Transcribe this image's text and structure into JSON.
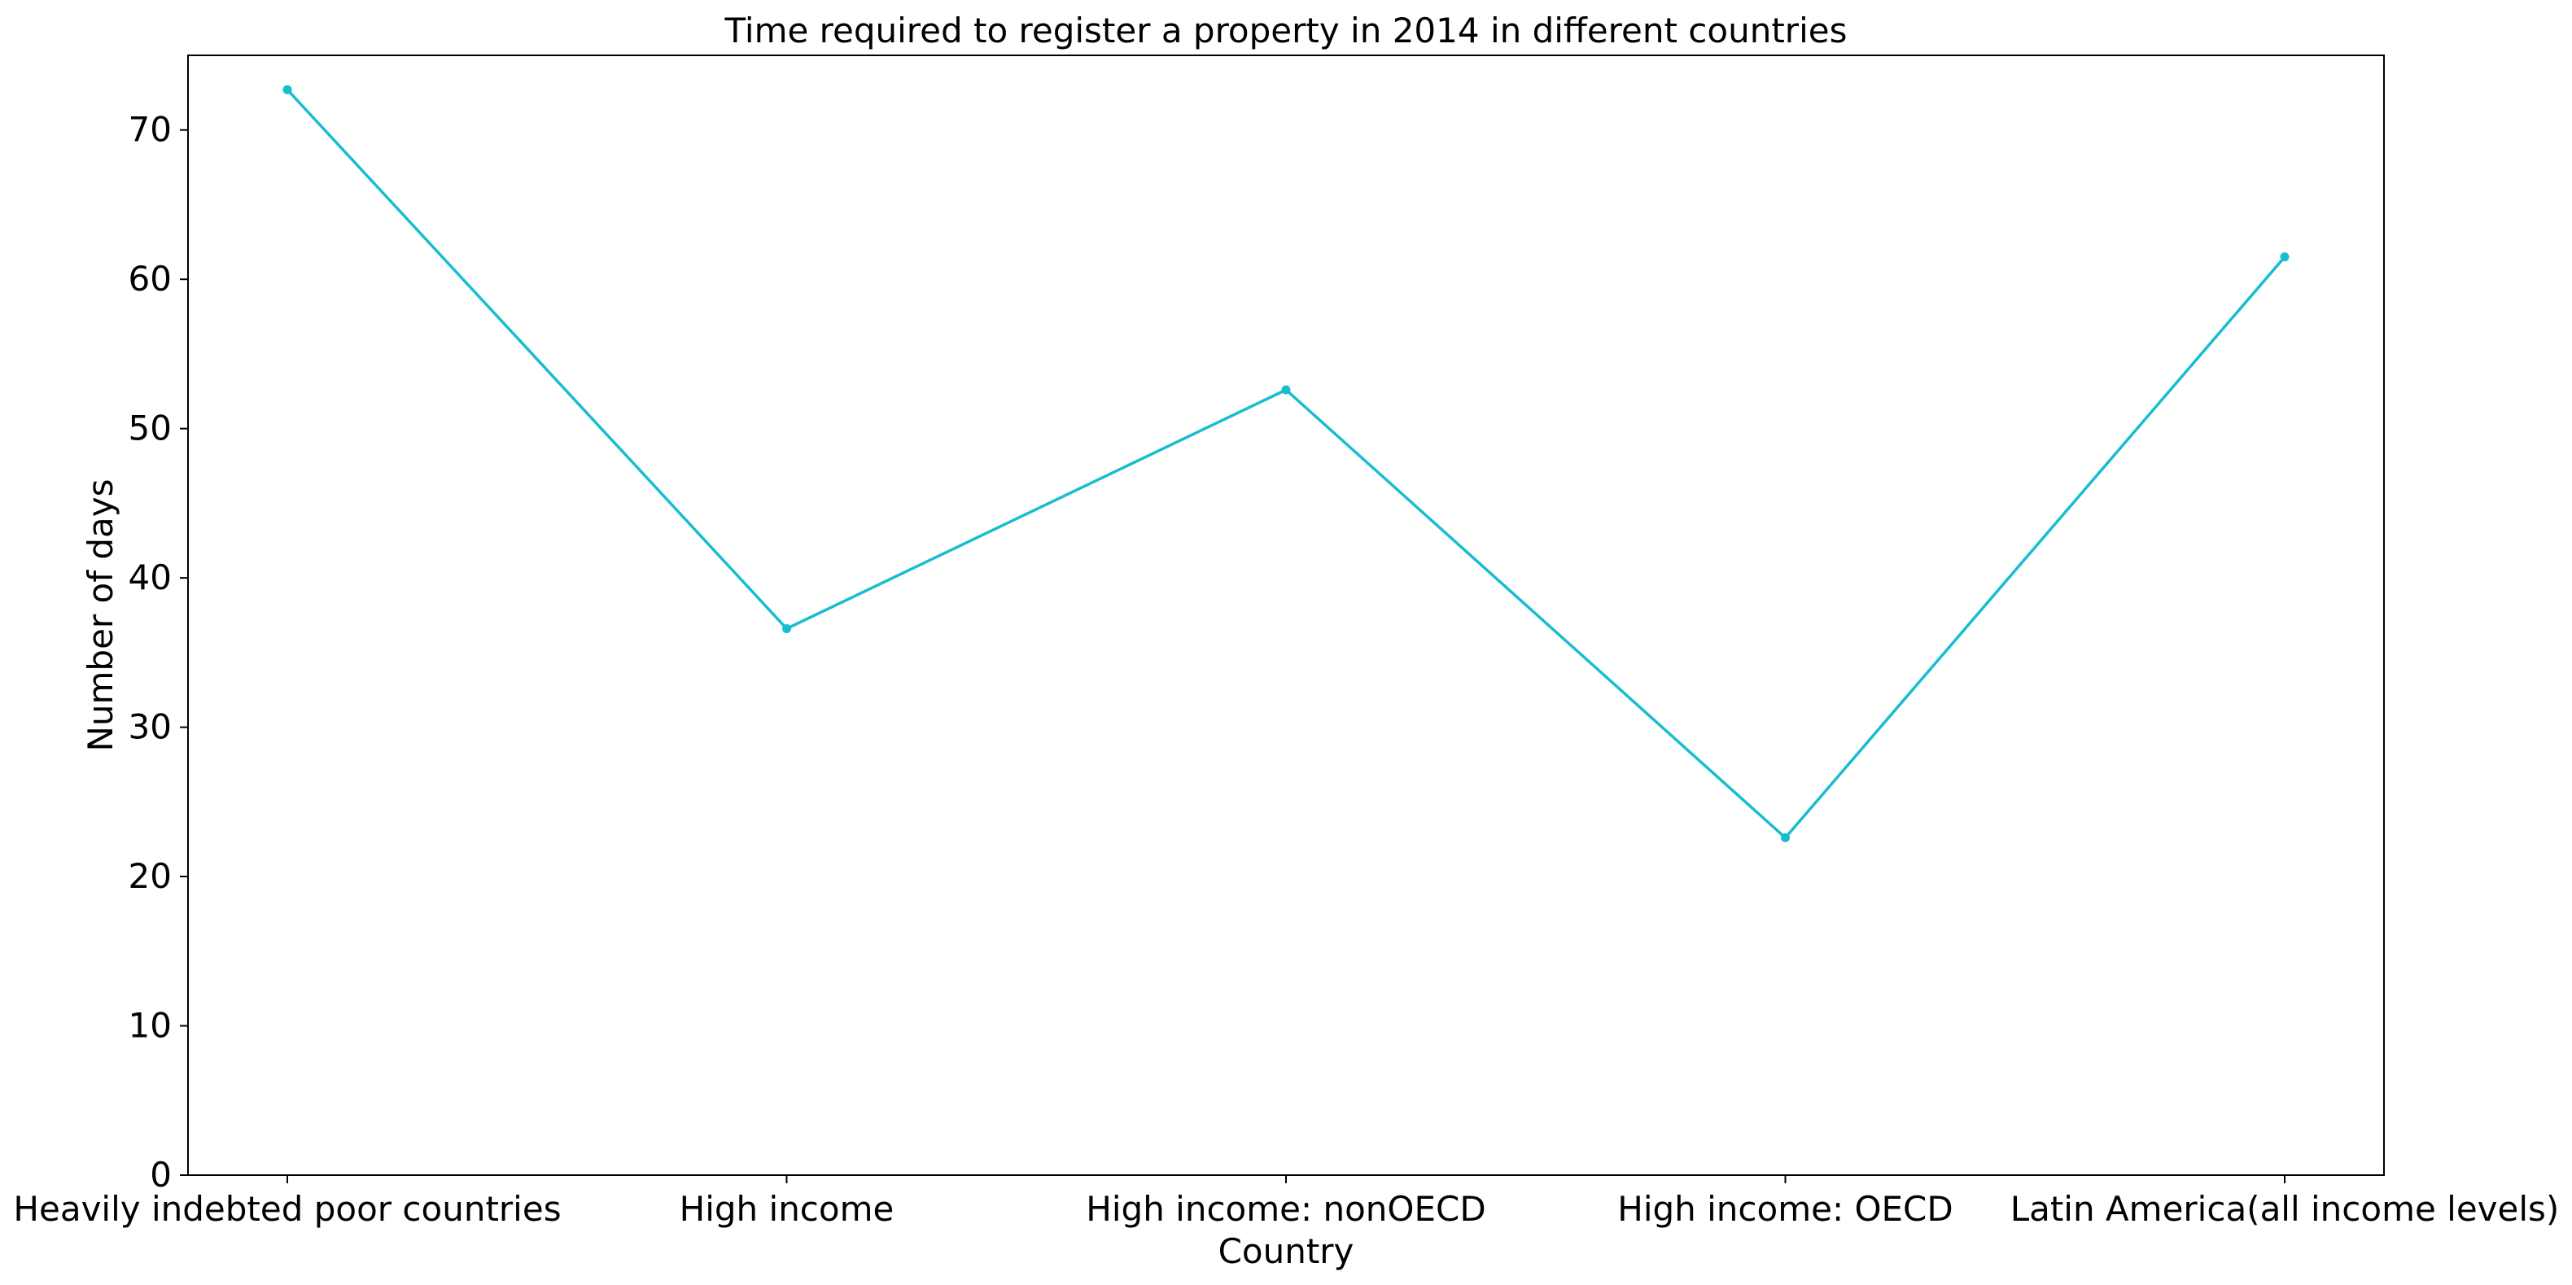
{
  "chart_data": {
    "type": "line",
    "title": "Time required to register a property in 2014 in different countries",
    "xlabel": "Country",
    "ylabel": "Number of days",
    "categories": [
      "Heavily indebted poor countries",
      "High income",
      "High income: nonOECD",
      "High income: OECD",
      "Latin America(all income levels)"
    ],
    "series": [
      {
        "values": [
          72.7,
          36.6,
          52.6,
          22.6,
          61.5
        ],
        "color": "#17becf",
        "marker": "circle"
      }
    ],
    "ylim": [
      0,
      75
    ],
    "yticks": [
      0,
      10,
      20,
      30,
      40,
      50,
      60,
      70
    ],
    "grid": false,
    "legend": "none"
  }
}
